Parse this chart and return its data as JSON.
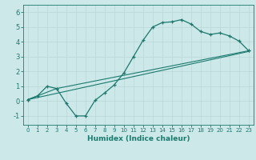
{
  "xlabel": "Humidex (Indice chaleur)",
  "xlim": [
    -0.5,
    23.5
  ],
  "ylim": [
    -1.6,
    6.5
  ],
  "xticks": [
    0,
    1,
    2,
    3,
    4,
    5,
    6,
    7,
    8,
    9,
    10,
    11,
    12,
    13,
    14,
    15,
    16,
    17,
    18,
    19,
    20,
    21,
    22,
    23
  ],
  "yticks": [
    -1,
    0,
    1,
    2,
    3,
    4,
    5,
    6
  ],
  "bg_color": "#cce8e8",
  "line_color": "#1a7a6e",
  "grid_color": "#b8d8d8",
  "line1_x": [
    0,
    1,
    2,
    3,
    4,
    5,
    6,
    7,
    8,
    9,
    10,
    11,
    12,
    13,
    14,
    15,
    16,
    17,
    18,
    19,
    20,
    21,
    22,
    23
  ],
  "line1_y": [
    0.1,
    0.35,
    1.0,
    0.85,
    -0.15,
    -1.0,
    -1.0,
    0.05,
    0.55,
    1.1,
    1.9,
    3.0,
    4.1,
    5.0,
    5.3,
    5.35,
    5.5,
    5.2,
    4.7,
    4.5,
    4.6,
    4.4,
    4.05,
    3.4
  ],
  "line2_x": [
    0,
    3,
    23
  ],
  "line2_y": [
    0.1,
    0.85,
    3.4
  ],
  "line3_x": [
    0,
    23
  ],
  "line3_y": [
    0.1,
    3.35
  ]
}
